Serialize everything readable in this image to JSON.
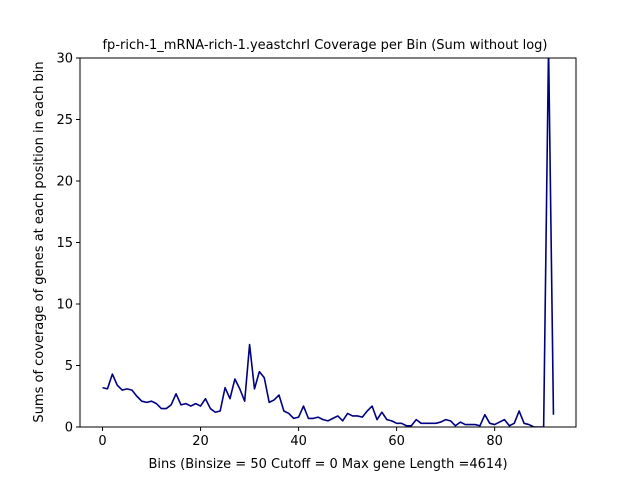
{
  "chart_data": {
    "type": "line",
    "title": "fp-rich-1_mRNA-rich-1.yeastchrI Coverage per Bin (Sum without log)",
    "xlabel": "Bins  (Binsize = 50 Cutoff = 0 Max gene Length =4614)",
    "ylabel": "Sums of coverage of genes at each position in each bin",
    "xlim": [
      -4.6,
      96.6
    ],
    "ylim": [
      0,
      30
    ],
    "x_ticks": [
      0,
      20,
      40,
      60,
      80
    ],
    "y_ticks": [
      0,
      5,
      10,
      15,
      20,
      25,
      30
    ],
    "grid": false,
    "line_color": "#000080",
    "x": [
      0,
      1,
      2,
      3,
      4,
      5,
      6,
      7,
      8,
      9,
      10,
      11,
      12,
      13,
      14,
      15,
      16,
      17,
      18,
      19,
      20,
      21,
      22,
      23,
      24,
      25,
      26,
      27,
      28,
      29,
      30,
      31,
      32,
      33,
      34,
      35,
      36,
      37,
      38,
      39,
      40,
      41,
      42,
      43,
      44,
      45,
      46,
      47,
      48,
      49,
      50,
      51,
      52,
      53,
      54,
      55,
      56,
      57,
      58,
      59,
      60,
      61,
      62,
      63,
      64,
      65,
      66,
      67,
      68,
      69,
      70,
      71,
      72,
      73,
      74,
      75,
      76,
      77,
      78,
      79,
      80,
      81,
      82,
      83,
      84,
      85,
      86,
      87,
      88,
      89,
      90,
      91,
      92
    ],
    "values": [
      3.2,
      3.1,
      4.3,
      3.4,
      3.0,
      3.1,
      3.0,
      2.5,
      2.1,
      2.0,
      2.1,
      1.9,
      1.5,
      1.5,
      1.8,
      2.7,
      1.8,
      1.9,
      1.7,
      1.9,
      1.7,
      2.3,
      1.5,
      1.2,
      1.3,
      3.2,
      2.3,
      3.9,
      3.1,
      2.1,
      6.7,
      3.1,
      4.5,
      4.0,
      2.0,
      2.2,
      2.6,
      1.3,
      1.1,
      0.7,
      0.8,
      1.7,
      0.7,
      0.7,
      0.8,
      0.6,
      0.5,
      0.7,
      0.9,
      0.5,
      1.1,
      0.9,
      0.9,
      0.8,
      1.3,
      1.7,
      0.6,
      1.2,
      0.6,
      0.5,
      0.3,
      0.3,
      0.1,
      0.1,
      0.6,
      0.3,
      0.3,
      0.3,
      0.3,
      0.4,
      0.6,
      0.5,
      0.1,
      0.4,
      0.2,
      0.2,
      0.2,
      0.1,
      1.0,
      0.3,
      0.2,
      0.4,
      0.6,
      0.1,
      0.3,
      1.3,
      0.3,
      0.2,
      0.0,
      0.0,
      0.0,
      31.0,
      1.0
    ]
  }
}
